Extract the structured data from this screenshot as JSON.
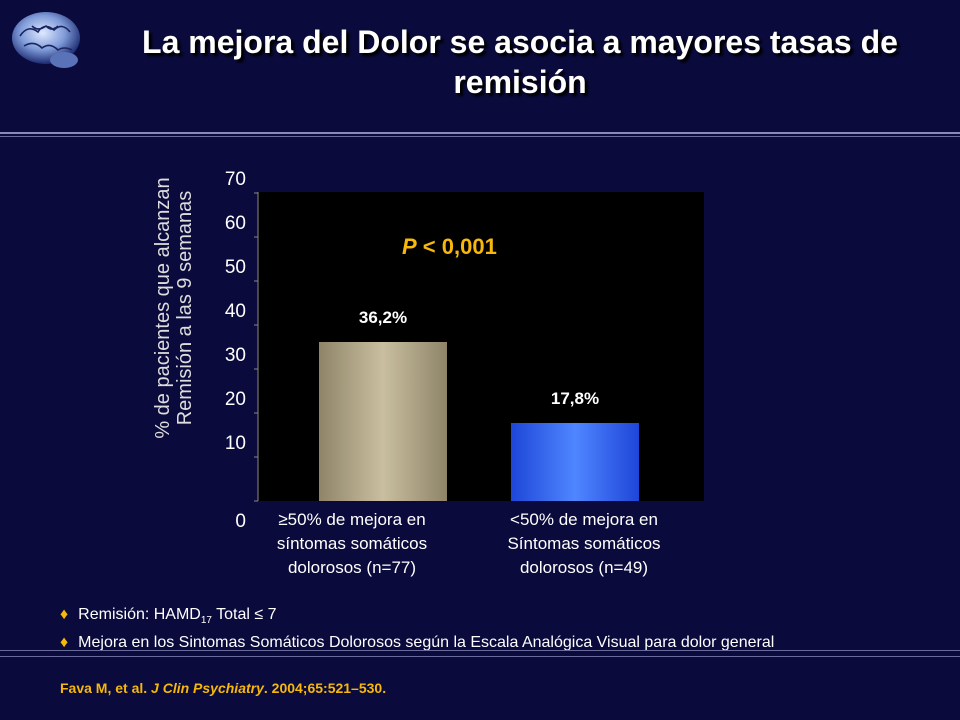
{
  "slide": {
    "title_line1": "La mejora del Dolor se asocia a mayores tasas de",
    "title_line2": "remisión"
  },
  "chart_data": {
    "type": "bar",
    "categories": [
      "≥50% de mejora en síntomas somáticos dolorosos (n=77)",
      "<50% de mejora en Síntomas somáticos dolorosos (n=49)"
    ],
    "category_lines": [
      [
        "≥50% de mejora en",
        "síntomas somáticos",
        "dolorosos (n=77)"
      ],
      [
        "<50% de mejora en",
        "Síntomas somáticos",
        "dolorosos (n=49)"
      ]
    ],
    "values": [
      36.2,
      17.8
    ],
    "data_labels": [
      "36,2%",
      "17,8%"
    ],
    "bar_colors": [
      "#b5aa88",
      "#2f64f5"
    ],
    "ylabel_line1": "% de pacientes que alcanzan",
    "ylabel_line2": "Remisión a las 9 semanas",
    "yticks": [
      "0",
      "10",
      "20",
      "30",
      "40",
      "50",
      "60",
      "70"
    ],
    "ylim": [
      0,
      70
    ],
    "annotation_italic": "P",
    "annotation_rest": " < 0,001",
    "annotation_color": "#f7b80a",
    "grid": false,
    "plot_background": "#000000"
  },
  "notes": {
    "note1_pre": "Remisión: HAMD",
    "note1_sub": "17",
    "note1_post": " Total  ≤ 7",
    "note2": "Mejora en los Sintomas Somáticos Dolorosos según la Escala Analógica Visual para dolor general",
    "bullet": "♦"
  },
  "citation": {
    "authors": "Fava M, et al. ",
    "journal": "J Clin Psychiatry",
    "details": ". 2004;65:521–530."
  }
}
